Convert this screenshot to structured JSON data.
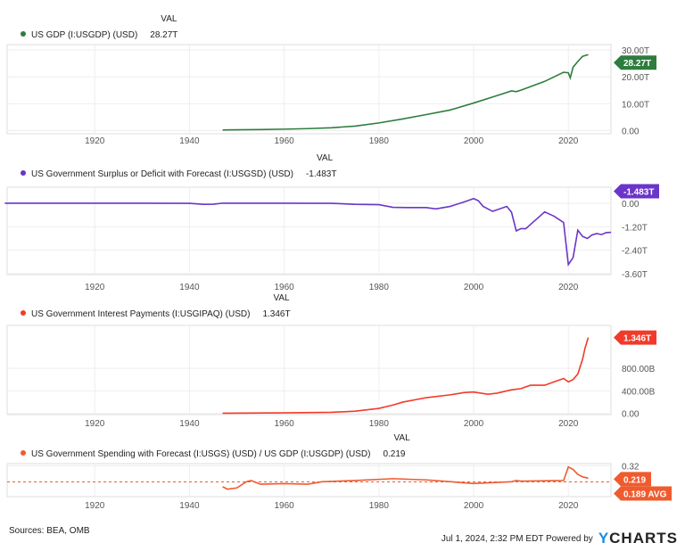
{
  "chart_data": [
    {
      "type": "line",
      "legend": "US GDP (I:USGDP) (USD)",
      "val_header": "VAL",
      "val": "28.27T",
      "color": "#2e7d3e",
      "yticks": [
        "0.00",
        "10.00T",
        "20.00T",
        "30.00T"
      ],
      "ytick_values": [
        0,
        10,
        20,
        30
      ],
      "ylim": [
        -0.5,
        30
      ],
      "unit": "T",
      "x": [
        1947,
        1955,
        1960,
        1965,
        1970,
        1975,
        1980,
        1985,
        1990,
        1995,
        2000,
        2005,
        2008,
        2009,
        2010,
        2015,
        2019,
        2020,
        2020.4,
        2021,
        2022,
        2023,
        2024.2
      ],
      "y": [
        0.24,
        0.4,
        0.54,
        0.74,
        1.07,
        1.68,
        2.86,
        4.34,
        5.96,
        7.64,
        10.25,
        13.04,
        14.77,
        14.48,
        15.05,
        18.3,
        21.7,
        21.5,
        19.6,
        23.6,
        25.7,
        27.6,
        28.27
      ]
    },
    {
      "type": "line",
      "legend": "US Government Surplus or Deficit with Forecast (I:USGSD) (USD)",
      "val_header": "VAL",
      "val": "-1.483T",
      "color": "#6a35c9",
      "yticks": [
        "0.00",
        "-1.20T",
        "-2.40T",
        "-3.60T"
      ],
      "ytick_values": [
        0,
        -1.2,
        -2.4,
        -3.6
      ],
      "ylim": [
        -3.6,
        0.5
      ],
      "x": [
        1901,
        1930,
        1940,
        1943,
        1945,
        1947,
        1960,
        1970,
        1975,
        1980,
        1983,
        1986,
        1990,
        1992,
        1995,
        1998,
        2000,
        2001,
        2002,
        2004,
        2007,
        2008,
        2009,
        2010,
        2011,
        2012,
        2015,
        2017,
        2019,
        2020,
        2021,
        2022,
        2023,
        2024,
        2025,
        2026,
        2027,
        2028,
        2029
      ],
      "y": [
        0,
        0,
        -0.003,
        -0.055,
        -0.048,
        0.004,
        0,
        -0.003,
        -0.053,
        -0.074,
        -0.208,
        -0.221,
        -0.221,
        -0.29,
        -0.164,
        0.069,
        0.236,
        0.128,
        -0.158,
        -0.413,
        -0.161,
        -0.459,
        -1.413,
        -1.294,
        -1.3,
        -1.087,
        -0.442,
        -0.665,
        -0.984,
        -3.132,
        -2.775,
        -1.375,
        -1.694,
        -1.8,
        -1.62,
        -1.55,
        -1.6,
        -1.5,
        -1.483
      ]
    },
    {
      "type": "line",
      "legend": "US Government Interest Payments (I:USGIPAQ) (USD)",
      "val_header": "VAL",
      "val": "1.346T",
      "color": "#f23a2a",
      "yticks": [
        "0.00",
        "400.00B",
        "800.00B"
      ],
      "ytick_values": [
        0,
        0.4,
        0.8
      ],
      "ylim": [
        -0.02,
        1.45
      ],
      "x": [
        1947,
        1960,
        1970,
        1975,
        1980,
        1983,
        1985,
        1990,
        1995,
        1998,
        2000,
        2003,
        2005,
        2008,
        2010,
        2012,
        2015,
        2017,
        2019,
        2020,
        2021,
        2022,
        2023,
        2023.5,
        2024.2
      ],
      "y": [
        0.005,
        0.01,
        0.02,
        0.04,
        0.09,
        0.15,
        0.2,
        0.28,
        0.33,
        0.37,
        0.38,
        0.34,
        0.36,
        0.42,
        0.44,
        0.5,
        0.5,
        0.56,
        0.62,
        0.56,
        0.6,
        0.7,
        0.96,
        1.15,
        1.346
      ]
    },
    {
      "type": "line",
      "legend": "US Government Spending with Forecast (I:USGS) (USD) / US GDP (I:USGDP) (USD)",
      "val_header": "VAL",
      "val": "0.219",
      "avg": 0.189,
      "avg_label": "0.189 AVG",
      "color": "#ef5b2f",
      "yticks": [
        "0.32"
      ],
      "ytick_values": [
        0.32
      ],
      "ylim": [
        0.12,
        0.33
      ],
      "x": [
        1947,
        1948,
        1950,
        1952,
        1953,
        1955,
        1960,
        1965,
        1968,
        1975,
        1983,
        1990,
        2000,
        2008,
        2009,
        2010,
        2019,
        2020,
        2021,
        2022,
        2023,
        2024.2
      ],
      "y": [
        0.15,
        0.13,
        0.14,
        0.19,
        0.2,
        0.17,
        0.175,
        0.17,
        0.19,
        0.2,
        0.215,
        0.205,
        0.176,
        0.19,
        0.2,
        0.195,
        0.2,
        0.31,
        0.29,
        0.25,
        0.23,
        0.219
      ]
    }
  ],
  "xaxis": {
    "ticks": [
      "1920",
      "1940",
      "1960",
      "1980",
      "2000",
      "2020"
    ],
    "tick_values": [
      1920,
      1940,
      1960,
      1980,
      2000,
      2020
    ],
    "xlim": [
      1901.5,
      2029
    ]
  },
  "footer": {
    "sources": "Sources: BEA, OMB",
    "timestamp": "Jul 1, 2024, 2:32 PM EDT Powered by",
    "brand": "YCHARTS"
  }
}
